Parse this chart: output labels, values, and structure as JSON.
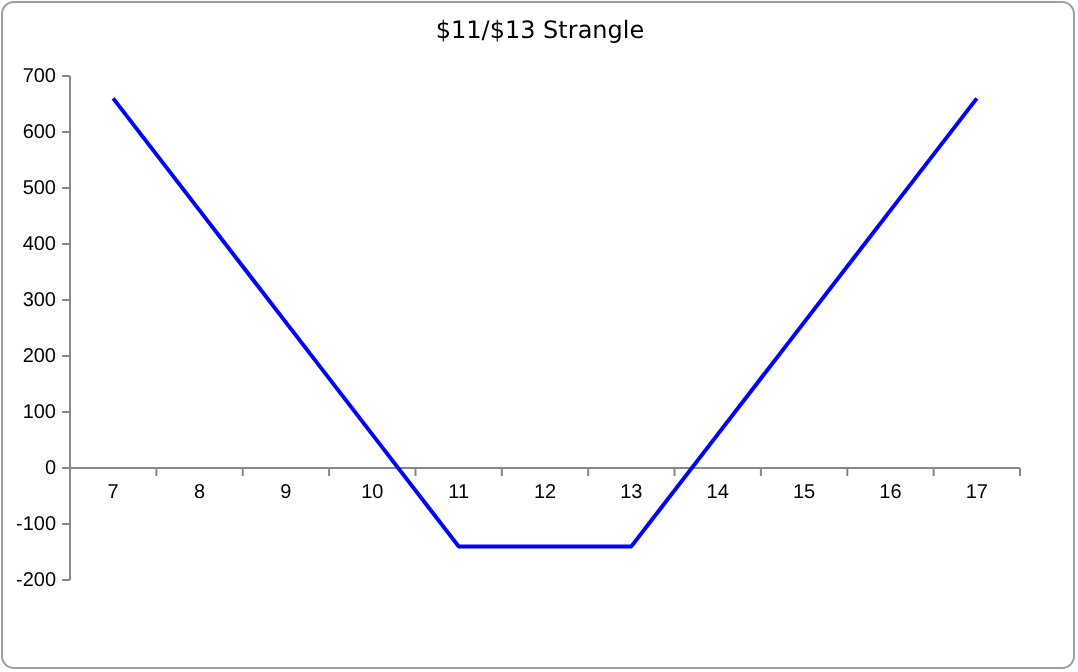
{
  "chart_data": {
    "type": "line",
    "title": "$11/$13 Strangle",
    "categories": [
      "7",
      "8",
      "9",
      "10",
      "11",
      "12",
      "13",
      "14",
      "15",
      "16",
      "17"
    ],
    "series": [
      {
        "color": "#0000ff",
        "values": [
          660,
          460,
          260,
          60,
          -140,
          -140,
          -140,
          60,
          260,
          460,
          660
        ]
      }
    ],
    "ylim": [
      -200,
      700
    ],
    "yticks": [
      -200,
      -100,
      0,
      100,
      200,
      300,
      400,
      500,
      600,
      700
    ],
    "grid": false,
    "marker": "none",
    "line_style": "solid"
  }
}
